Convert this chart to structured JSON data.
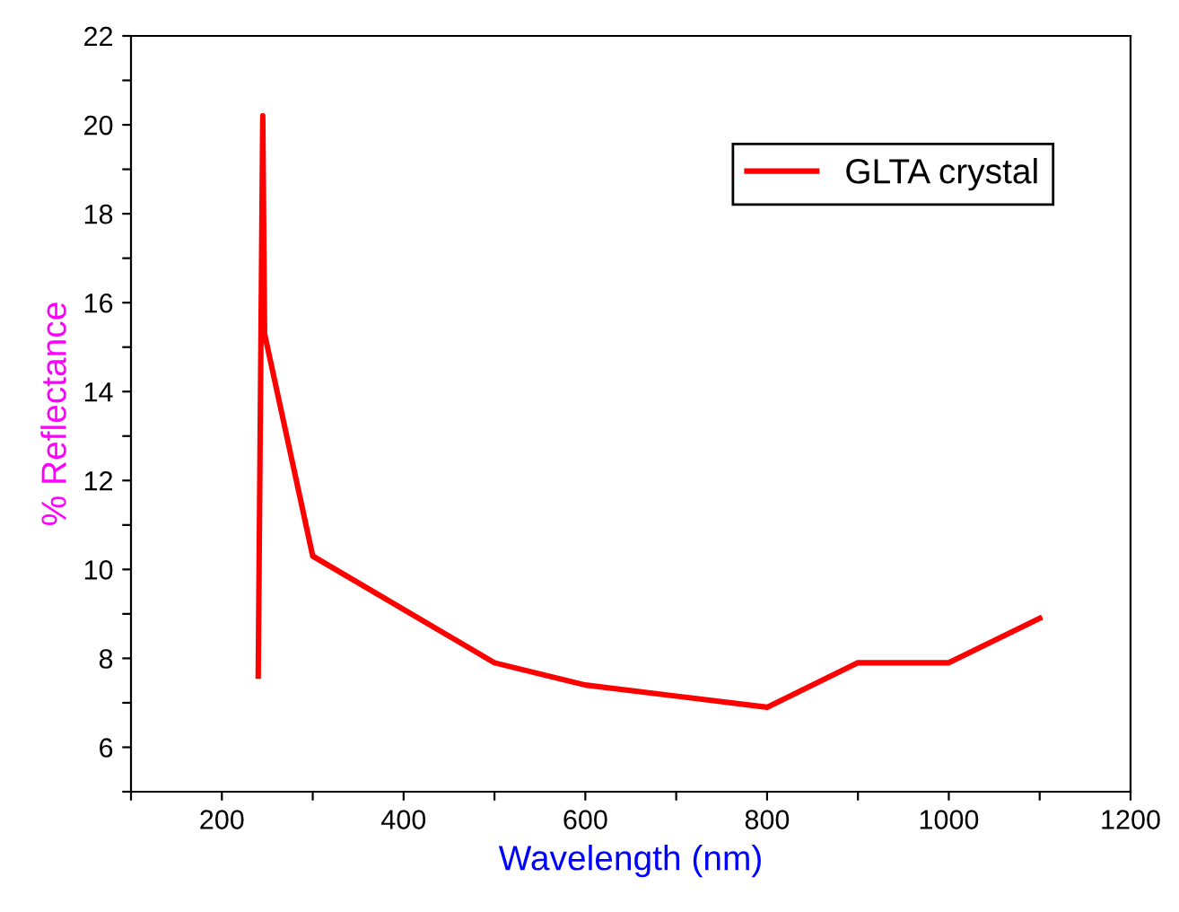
{
  "chart_data": {
    "type": "line",
    "xlabel": "Wavelength (nm)",
    "ylabel": "% Reflectance",
    "series": [
      {
        "name": "GLTA crystal",
        "color": "#ff0000",
        "x": [
          240,
          245,
          247,
          300,
          500,
          600,
          800,
          900,
          1000,
          1100
        ],
        "values": [
          7.6,
          20.2,
          15.3,
          10.3,
          7.9,
          7.4,
          6.9,
          7.9,
          7.9,
          8.9
        ]
      }
    ],
    "xlim": [
      100,
      1200
    ],
    "ylim": [
      5,
      22
    ],
    "xticks": [
      {
        "value": 100,
        "label": null
      },
      200,
      {
        "value": 300,
        "label": null
      },
      400,
      {
        "value": 500,
        "label": null
      },
      600,
      {
        "value": 700,
        "label": null
      },
      800,
      {
        "value": 900,
        "label": null
      },
      1000,
      {
        "value": 1100,
        "label": null
      },
      1200
    ],
    "yticks": [
      {
        "value": 5,
        "label": null
      },
      6,
      {
        "value": 7,
        "label": null
      },
      8,
      {
        "value": 9,
        "label": null
      },
      10,
      {
        "value": 11,
        "label": null
      },
      12,
      {
        "value": 13,
        "label": null
      },
      14,
      {
        "value": 15,
        "label": null
      },
      16,
      {
        "value": 17,
        "label": null
      },
      18,
      {
        "value": 19,
        "label": null
      },
      20,
      {
        "value": 21,
        "label": null
      },
      22
    ],
    "grid": false,
    "legend": "top right",
    "marker": "none",
    "line_style": "solid"
  }
}
